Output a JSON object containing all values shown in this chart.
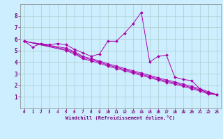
{
  "xlabel": "Windchill (Refroidissement éolien,°C)",
  "background_color": "#cceeff",
  "grid_color": "#aacccc",
  "line_color": "#aa00aa",
  "xlim": [
    -0.5,
    23.5
  ],
  "ylim": [
    0,
    9
  ],
  "xticks": [
    0,
    1,
    2,
    3,
    4,
    5,
    6,
    7,
    8,
    9,
    10,
    11,
    12,
    13,
    14,
    15,
    16,
    17,
    18,
    19,
    20,
    21,
    22,
    23
  ],
  "yticks": [
    1,
    2,
    3,
    4,
    5,
    6,
    7,
    8
  ],
  "series": [
    {
      "x": [
        0,
        1,
        2,
        3,
        4,
        5,
        6,
        7,
        8,
        9,
        10,
        11,
        12,
        13,
        14,
        15,
        16,
        17,
        18,
        19,
        20,
        21,
        22,
        23
      ],
      "y": [
        5.8,
        5.3,
        5.6,
        5.5,
        5.6,
        5.5,
        5.1,
        4.8,
        4.5,
        4.7,
        5.8,
        5.8,
        6.5,
        7.3,
        8.3,
        4.0,
        4.5,
        4.6,
        2.7,
        2.5,
        2.4,
        1.7,
        1.3,
        1.2
      ]
    },
    {
      "x": [
        0,
        5,
        6,
        7,
        8,
        9,
        10,
        11,
        12,
        13,
        14,
        15,
        16,
        17,
        18,
        19,
        20,
        21,
        22,
        23
      ],
      "y": [
        5.8,
        5.2,
        4.9,
        4.5,
        4.3,
        4.1,
        3.85,
        3.65,
        3.45,
        3.25,
        3.05,
        2.85,
        2.65,
        2.45,
        2.3,
        2.1,
        1.9,
        1.7,
        1.45,
        1.2
      ]
    },
    {
      "x": [
        0,
        5,
        6,
        7,
        8,
        9,
        10,
        11,
        12,
        13,
        14,
        15,
        16,
        17,
        18,
        19,
        20,
        21,
        22,
        23
      ],
      "y": [
        5.8,
        5.1,
        4.8,
        4.4,
        4.2,
        4.0,
        3.75,
        3.55,
        3.35,
        3.15,
        2.95,
        2.75,
        2.55,
        2.35,
        2.2,
        2.0,
        1.8,
        1.6,
        1.35,
        1.2
      ]
    },
    {
      "x": [
        0,
        5,
        6,
        7,
        8,
        9,
        10,
        11,
        12,
        13,
        14,
        15,
        16,
        17,
        18,
        19,
        20,
        21,
        22,
        23
      ],
      "y": [
        5.8,
        5.0,
        4.7,
        4.3,
        4.1,
        3.9,
        3.65,
        3.45,
        3.25,
        3.05,
        2.85,
        2.65,
        2.45,
        2.25,
        2.1,
        1.9,
        1.7,
        1.5,
        1.25,
        1.2
      ]
    }
  ]
}
